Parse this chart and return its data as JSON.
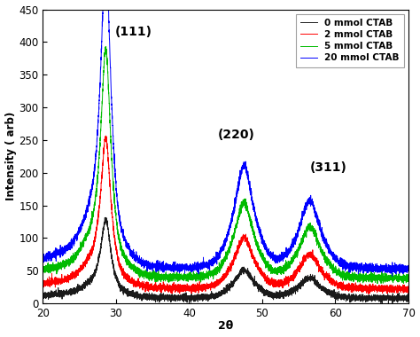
{
  "title": "",
  "xlabel": "2θ",
  "ylabel": "Intensity ( arb)",
  "xlim": [
    20,
    70
  ],
  "ylim": [
    0,
    450
  ],
  "yticks": [
    0,
    50,
    100,
    150,
    200,
    250,
    300,
    350,
    400,
    450
  ],
  "xticks": [
    20,
    30,
    40,
    50,
    60,
    70
  ],
  "peak111_label": "(111)",
  "peak220_label": "(220)",
  "peak311_label": "(311)",
  "peak111_x": 29.5,
  "peak220_x": 47.5,
  "peak311_x": 57.5,
  "series": [
    {
      "label": "0 mmol CTAB",
      "color": "#1a1a1a",
      "baseline": 8,
      "peak111": 100,
      "peak220": 47,
      "peak311": 36,
      "noise": 2.5
    },
    {
      "label": "2 mmol CTAB",
      "color": "#ff0000",
      "baseline": 22,
      "peak111": 200,
      "peak220": 93,
      "peak311": 70,
      "noise": 2.8
    },
    {
      "label": "5 mmol CTAB",
      "color": "#00bb00",
      "baseline": 38,
      "peak111": 308,
      "peak220": 143,
      "peak311": 110,
      "noise": 3.0
    },
    {
      "label": "20 mmol CTAB",
      "color": "#0000ff",
      "baseline": 52,
      "peak111": 420,
      "peak220": 195,
      "peak311": 147,
      "noise": 3.2
    }
  ],
  "legend_loc": "upper right",
  "background_color": "#ffffff"
}
